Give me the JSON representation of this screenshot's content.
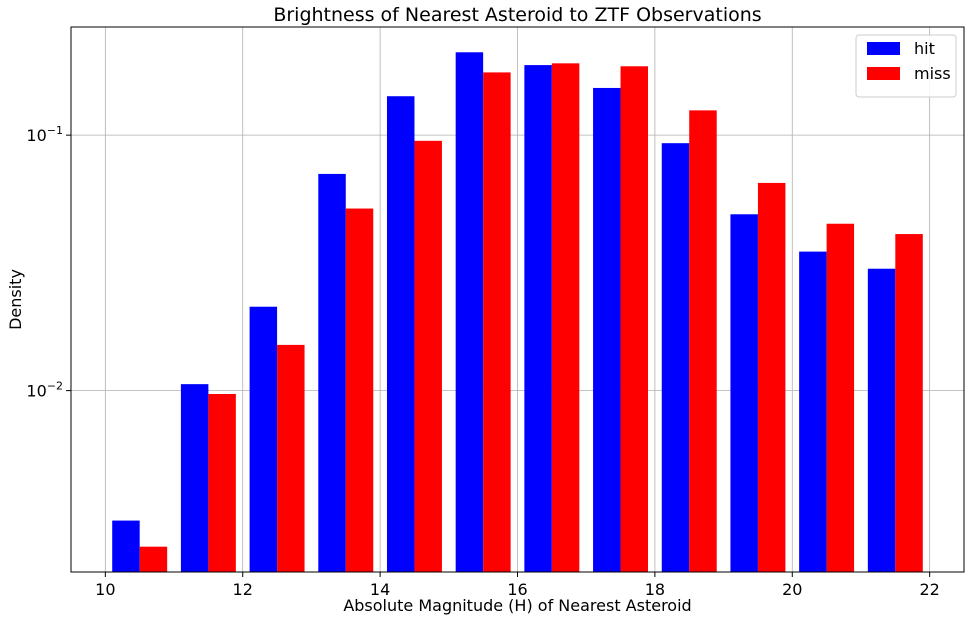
{
  "chart_data": {
    "type": "bar",
    "title": "Brightness of Nearest Asteroid to ZTF Observations",
    "xlabel": "Absolute Magnitude (H) of Nearest Asteroid",
    "ylabel": "Density",
    "xlim": [
      9.5,
      22.5
    ],
    "ylim": [
      0.00195,
      0.265
    ],
    "yscale": "log",
    "grid": true,
    "legend_position": "top-right",
    "xticks": [
      {
        "value": 10,
        "label": "10"
      },
      {
        "value": 12,
        "label": "12"
      },
      {
        "value": 14,
        "label": "14"
      },
      {
        "value": 16,
        "label": "16"
      },
      {
        "value": 18,
        "label": "18"
      },
      {
        "value": 20,
        "label": "20"
      },
      {
        "value": 22,
        "label": "22"
      }
    ],
    "yticks": [
      {
        "value": 0.01,
        "base": "10",
        "exp": "−2"
      },
      {
        "value": 0.1,
        "base": "10",
        "exp": "−1"
      }
    ],
    "bin_edges": [
      10.1,
      11.1,
      12.1,
      13.1,
      14.1,
      15.1,
      16.1,
      17.1,
      18.1,
      19.1,
      20.1,
      21.1,
      22.1
    ],
    "series": [
      {
        "name": "hit",
        "color": "#0000ff",
        "values": [
          0.0031,
          0.0106,
          0.0213,
          0.0705,
          0.142,
          0.211,
          0.188,
          0.153,
          0.093,
          0.049,
          0.035,
          0.03
        ]
      },
      {
        "name": "miss",
        "color": "#ff0000",
        "values": [
          0.00245,
          0.0097,
          0.0151,
          0.0516,
          0.095,
          0.176,
          0.191,
          0.186,
          0.125,
          0.065,
          0.045,
          0.041
        ]
      }
    ]
  }
}
